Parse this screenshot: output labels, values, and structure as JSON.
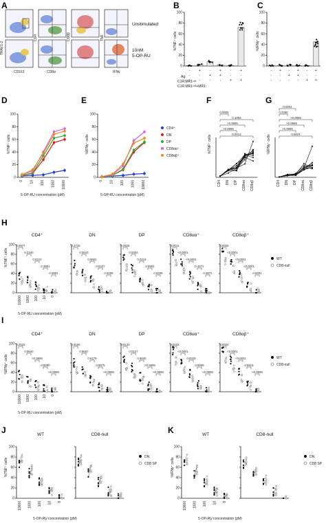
{
  "panels": {
    "A": {
      "letter": "A",
      "row_labels": [
        "Unstimulated",
        "10nM\n5-OP-RU"
      ],
      "row_label_line1": "Unstimulated",
      "row_label_2a": "10nM",
      "row_label_2b": "5-OP-RU",
      "axis_labels": {
        "x1": "CD161",
        "y1": "TRAV1-2",
        "x2": "CD8α",
        "y2": "CD4",
        "y3": "CD8β",
        "y4": "TNF",
        "x4": "IFNγ"
      }
    },
    "B": {
      "letter": "B",
      "ylabel": "%TNF⁺ cells",
      "ag_label": "Ag:",
      "row2": "C1R.MR1ⁿᵘˡˡ",
      "row3": "C1R.MR1ⁿᵘˡˡ+MR1:",
      "signs_row1": [
        "-",
        "+",
        "-",
        "+",
        "-",
        "+"
      ],
      "signs_row2": [
        "-",
        "-",
        "+",
        "+",
        "-",
        "-"
      ],
      "signs_row3": [
        "-",
        "-",
        "-",
        "-",
        "+",
        "+"
      ],
      "yticks": [
        "0",
        "20",
        "40",
        "60",
        "80",
        "100"
      ]
    },
    "C": {
      "letter": "C",
      "ylabel": "%IFNγ⁺ cells",
      "yticks": [
        "0",
        "20",
        "40",
        "60",
        "80",
        "100"
      ]
    },
    "D": {
      "letter": "D",
      "ylabel": "%TNF⁺ cells",
      "xlabel": "5-OP-RU concentration (pM)",
      "yticks": [
        "0",
        "20",
        "40",
        "60",
        "80",
        "100"
      ],
      "xticks": [
        "0",
        "10",
        "100",
        "1000",
        "10000"
      ]
    },
    "E": {
      "letter": "E",
      "ylabel": "%IFNγ⁺ cells",
      "xlabel": "5-OP-RU concentration (pM)",
      "yticks": [
        "0",
        "20",
        "40",
        "60",
        "80",
        "100"
      ],
      "xticks": [
        "0",
        "10",
        "100",
        "1000",
        "10000"
      ]
    },
    "F": {
      "letter": "F",
      "ylabel": "%TNF⁺ cells",
      "pvals": [
        "0.0013",
        ">0.9999",
        ">0.9999",
        "0.1092",
        "0.0005"
      ],
      "xcats": [
        "CD4",
        "DN",
        "DP",
        "CD8αα",
        "CD8αβ"
      ]
    },
    "G": {
      "letter": "G",
      "ylabel": "%IFNγ⁺ cells",
      "pvals": [
        "0.0024",
        ">0.9999",
        ">0.9999",
        ">0.9999",
        "0.2365",
        "0.0004"
      ],
      "xcats": [
        "CD4",
        "DN",
        "DP",
        "CD8αα",
        "CD8αβ"
      ]
    },
    "H": {
      "letter": "H",
      "ylabel": "%TNF⁺ cells",
      "xlabel": "5-OP-RU concentration (pM)",
      "subtitles": [
        "CD4⁺",
        "DN",
        "DP",
        "CD8αα⁺",
        "CD8αβ⁺"
      ],
      "legend": [
        "WT",
        "CD8-null"
      ]
    },
    "I": {
      "letter": "I",
      "ylabel": "%IFNγ⁺ cells",
      "xlabel": "5-OP-RU concentration (pM)",
      "subtitles": [
        "CD4⁺",
        "DN",
        "DP",
        "CD8αα⁺",
        "CD8αβ⁺"
      ],
      "legend": [
        "WT",
        "CD8-null"
      ]
    },
    "J": {
      "letter": "J",
      "ylabel": "%TNF⁺ cells",
      "xlabel": "5-OP-RU concentration (pM)",
      "subtitles": [
        "WT",
        "CD8-null"
      ],
      "legend": [
        "DN",
        "CD8 SP"
      ]
    },
    "K": {
      "letter": "K",
      "ylabel": "%IFNγ⁺ cells",
      "xlabel": "5-OP-RU concentration (pM)",
      "subtitles": [
        "WT",
        "CD8-null"
      ],
      "legend": [
        "DN",
        "CD8 SP"
      ]
    }
  },
  "h_pvals": [
    [
      "0.9977",
      "0.2340",
      "0.8210",
      "0.3881",
      "0.9991"
    ],
    [
      "0.4745",
      "0.0643",
      "0.9552",
      "0.0437",
      "0.6259"
    ],
    [
      "0.0828",
      "0.0003",
      "0.0219",
      "0.9952",
      "0.6259"
    ],
    [
      "0.0011",
      "<0.0001",
      "<0.0001",
      "0.4671",
      "0.9871"
    ],
    [
      "0.0006",
      "<0.0001",
      "<0.0001",
      "<0.0001",
      "0.0001"
    ]
  ],
  "i_pvals": [
    [
      "0.2529",
      "0.9840",
      ">0.9999",
      "0.8890",
      ">0.9999"
    ],
    [
      "0.9166",
      "0.9667",
      "0.6179",
      "0.9875",
      ">0.9999"
    ],
    [
      "0.0133",
      "0.0127",
      "0.9530",
      ">0.9999",
      ">0.9999"
    ],
    [
      "0.0033",
      "<0.0001",
      "0.0029",
      "0.9999",
      ">0.9999"
    ],
    [
      "0.0004",
      "<0.0001",
      "<0.0001",
      "0.9915",
      ">0.9999"
    ]
  ],
  "tick_labels_conc": [
    "10000",
    "1000",
    "100",
    "10",
    "0"
  ],
  "chart_data": [
    {
      "type": "line",
      "panel": "D",
      "x": [
        0,
        10,
        100,
        1000,
        10000
      ],
      "xlabel": "5-OP-RU concentration (pM)",
      "ylabel": "%TNF⁺ cells",
      "ylim": [
        0,
        100
      ],
      "series": [
        {
          "name": "CD4⁺",
          "color": "#1f3fd1",
          "values": [
            2,
            3,
            4,
            8,
            11
          ]
        },
        {
          "name": "DN",
          "color": "#e01b1b",
          "values": [
            3,
            6,
            28,
            55,
            60
          ]
        },
        {
          "name": "DP",
          "color": "#3aa635",
          "values": [
            3,
            7,
            34,
            62,
            66
          ]
        },
        {
          "name": "CD8αα⁺",
          "color": "#cc66dd",
          "values": [
            4,
            10,
            40,
            72,
            77
          ]
        },
        {
          "name": "CD8αβ⁺",
          "color": "#f08a1c",
          "values": [
            4,
            12,
            38,
            68,
            73
          ]
        }
      ]
    },
    {
      "type": "line",
      "panel": "E",
      "x": [
        0,
        10,
        100,
        1000,
        10000
      ],
      "xlabel": "5-OP-RU concentration (pM)",
      "ylabel": "%IFNγ⁺ cells",
      "ylim": [
        0,
        100
      ],
      "series": [
        {
          "name": "CD4⁺",
          "color": "#1f3fd1",
          "values": [
            1,
            2,
            3,
            5,
            6
          ]
        },
        {
          "name": "DN",
          "color": "#e01b1b",
          "values": [
            1,
            3,
            12,
            40,
            55
          ]
        },
        {
          "name": "DP",
          "color": "#3aa635",
          "values": [
            1,
            3,
            13,
            43,
            56
          ]
        },
        {
          "name": "CD8αα⁺",
          "color": "#cc66dd",
          "values": [
            1,
            4,
            18,
            58,
            72
          ]
        },
        {
          "name": "CD8αβ⁺",
          "color": "#f08a1c",
          "values": [
            1,
            5,
            21,
            54,
            62
          ]
        }
      ]
    },
    {
      "type": "bar",
      "panel": "B",
      "ylabel": "%TNF⁺ cells",
      "ylim": [
        0,
        100
      ],
      "values": [
        1,
        2,
        8,
        2,
        1,
        72
      ]
    },
    {
      "type": "bar",
      "panel": "C",
      "ylabel": "%IFNγ⁺ cells",
      "ylim": [
        0,
        100
      ],
      "values": [
        1,
        1,
        2,
        1,
        1,
        45
      ]
    }
  ]
}
